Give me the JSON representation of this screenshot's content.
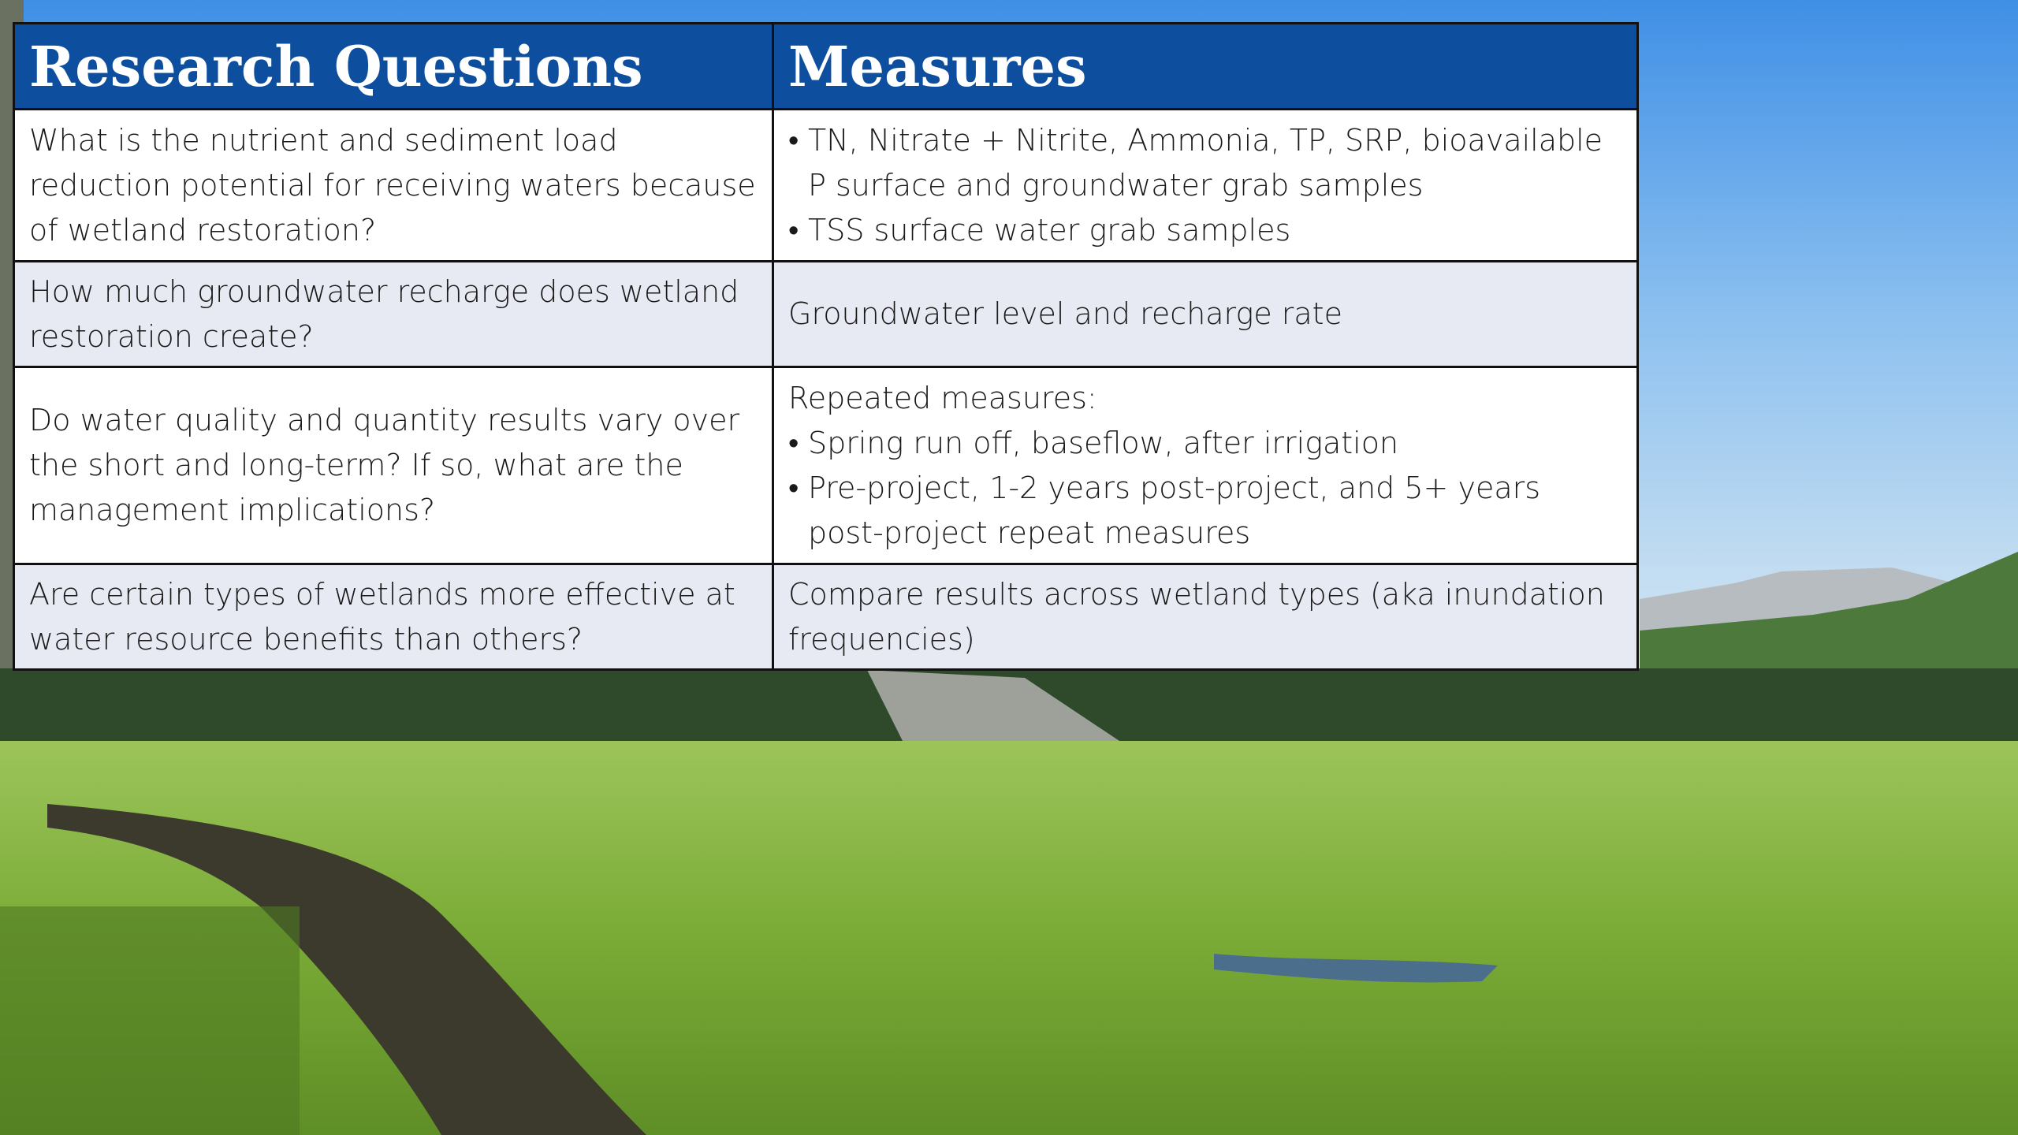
{
  "table": {
    "header": [
      "Research Questions",
      "Measures"
    ],
    "rows": [
      {
        "question": "What is the nutrient and sediment load reduction potential for receiving waters because of wetland restoration?",
        "measures": {
          "bullets": [
            "TN, Nitrate + Nitrite, Ammonia, TP, SRP, bioavailable P surface and groundwater grab samples",
            "TSS surface water grab samples"
          ]
        }
      },
      {
        "question": "How much groundwater recharge does wetland restoration create?",
        "measures": {
          "text": "Groundwater level and recharge rate"
        }
      },
      {
        "question": "Do water quality and quantity results vary over the short and long-term? If so, what are the management implications?",
        "measures": {
          "text": "Repeated measures:",
          "bullets": [
            "Spring run off, baseflow, after irrigation",
            "Pre-project, 1-2 years post-project, and 5+ years post-project repeat measures"
          ]
        }
      },
      {
        "question": "Are certain types of wetlands more effective at water resource benefits than others?",
        "measures": {
          "text": "Compare results across wetland types (aka inundation frequencies)"
        }
      }
    ]
  }
}
